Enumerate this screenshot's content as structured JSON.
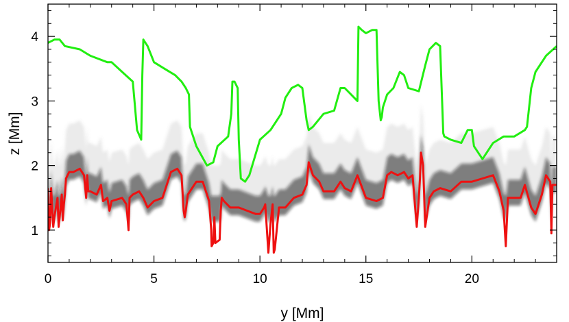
{
  "chart_data": {
    "type": "line",
    "title": "",
    "xlabel": "y [Mm]",
    "ylabel": "z [Mm]",
    "xlim": [
      0,
      24
    ],
    "ylim": [
      0.5,
      4.5
    ],
    "xticks": [
      0,
      5,
      10,
      15,
      20
    ],
    "yticks": [
      1,
      2,
      3,
      4
    ],
    "background": "grayscale density map (dark band near z 1.3-2.0 Mm)",
    "colors": {
      "upper_series": "#22ee11",
      "lower_series": "#ee1111",
      "axis": "#000000"
    },
    "series": [
      {
        "name": "upper boundary (green)",
        "color": "#22ee11",
        "x": [
          0.0,
          0.3,
          0.55,
          0.8,
          1.5,
          2.0,
          2.8,
          3.0,
          3.5,
          4.0,
          4.2,
          4.4,
          4.45,
          4.5,
          4.7,
          5.0,
          5.5,
          6.0,
          6.3,
          6.5,
          6.65,
          6.7,
          7.0,
          7.5,
          7.8,
          8.0,
          8.5,
          8.65,
          8.7,
          8.8,
          8.95,
          9.0,
          9.1,
          9.3,
          9.5,
          10.0,
          10.5,
          11.0,
          11.2,
          11.5,
          11.8,
          12.0,
          12.2,
          12.3,
          12.5,
          13.0,
          13.5,
          13.8,
          14.0,
          14.3,
          14.6,
          14.65,
          14.8,
          15.0,
          15.3,
          15.5,
          15.6,
          15.7,
          15.75,
          15.8,
          16.0,
          16.3,
          16.6,
          16.8,
          17.0,
          17.5,
          17.8,
          18.0,
          18.3,
          18.5,
          18.65,
          18.7,
          19.0,
          19.5,
          19.8,
          20.0,
          20.1,
          20.3,
          20.5,
          21.0,
          21.5,
          22.0,
          22.5,
          22.6,
          22.8,
          23.0,
          23.5,
          24.0
        ],
        "y": [
          3.9,
          3.95,
          3.95,
          3.85,
          3.8,
          3.7,
          3.6,
          3.6,
          3.45,
          3.3,
          2.55,
          2.4,
          3.4,
          3.95,
          3.85,
          3.6,
          3.5,
          3.4,
          3.3,
          3.2,
          3.1,
          2.6,
          2.3,
          2.0,
          2.05,
          2.3,
          2.45,
          2.8,
          3.3,
          3.3,
          3.2,
          2.4,
          1.8,
          1.75,
          1.85,
          2.4,
          2.55,
          2.8,
          3.05,
          3.2,
          3.25,
          3.2,
          2.7,
          2.55,
          2.6,
          2.8,
          2.85,
          3.2,
          3.2,
          3.1,
          3.0,
          4.15,
          4.1,
          4.05,
          4.1,
          4.1,
          3.0,
          2.7,
          2.75,
          2.9,
          3.1,
          3.2,
          3.45,
          3.4,
          3.2,
          3.15,
          3.55,
          3.8,
          3.9,
          3.85,
          2.5,
          2.45,
          2.4,
          2.35,
          2.55,
          2.55,
          2.3,
          2.2,
          2.1,
          2.35,
          2.45,
          2.45,
          2.55,
          2.6,
          3.2,
          3.45,
          3.7,
          3.85
        ]
      },
      {
        "name": "lower boundary (red)",
        "color": "#ee1111",
        "x": [
          0.0,
          0.05,
          0.1,
          0.15,
          0.25,
          0.3,
          0.45,
          0.5,
          0.55,
          0.65,
          0.7,
          0.75,
          0.8,
          0.85,
          1.0,
          1.2,
          1.5,
          1.7,
          1.8,
          1.85,
          1.9,
          2.0,
          2.3,
          2.5,
          2.6,
          2.8,
          2.9,
          3.0,
          3.5,
          3.7,
          3.8,
          3.85,
          4.0,
          4.3,
          4.5,
          4.7,
          5.0,
          5.4,
          5.8,
          6.1,
          6.3,
          6.4,
          6.45,
          6.5,
          6.6,
          7.0,
          7.3,
          7.5,
          7.6,
          7.7,
          7.72,
          7.8,
          7.85,
          7.9,
          8.1,
          8.15,
          8.2,
          8.3,
          8.6,
          9.0,
          9.4,
          9.8,
          10.0,
          10.2,
          10.25,
          10.4,
          10.5,
          10.6,
          10.65,
          10.7,
          10.9,
          11.2,
          11.6,
          12.0,
          12.2,
          12.3,
          12.5,
          12.8,
          13.0,
          13.5,
          13.8,
          14.0,
          14.3,
          14.6,
          15.0,
          15.5,
          15.8,
          16.0,
          16.2,
          16.5,
          16.8,
          17.0,
          17.2,
          17.4,
          17.5,
          17.55,
          17.6,
          17.7,
          17.8,
          18.0,
          18.2,
          18.5,
          19.0,
          19.5,
          20.0,
          20.5,
          21.0,
          21.3,
          21.5,
          21.6,
          21.7,
          22.0,
          22.3,
          22.5,
          22.8,
          23.0,
          23.3,
          23.5,
          23.7,
          23.75,
          23.8,
          23.9,
          24.0
        ],
        "y": [
          1.65,
          1.0,
          1.1,
          1.65,
          1.05,
          1.2,
          1.5,
          1.05,
          1.2,
          1.55,
          1.15,
          1.4,
          1.55,
          1.8,
          1.9,
          1.9,
          1.95,
          1.85,
          1.5,
          1.85,
          1.6,
          1.6,
          1.55,
          1.7,
          1.45,
          1.5,
          1.3,
          1.45,
          1.5,
          1.4,
          1.0,
          1.5,
          1.55,
          1.6,
          1.5,
          1.35,
          1.45,
          1.5,
          1.9,
          1.95,
          1.85,
          1.3,
          1.2,
          1.3,
          1.55,
          1.75,
          1.75,
          1.55,
          1.45,
          1.0,
          0.75,
          0.8,
          1.2,
          0.8,
          0.85,
          1.3,
          1.5,
          1.45,
          1.35,
          1.35,
          1.3,
          1.25,
          1.25,
          1.35,
          1.4,
          0.65,
          1.1,
          1.4,
          0.65,
          0.7,
          1.35,
          1.35,
          1.5,
          1.55,
          1.7,
          2.05,
          1.85,
          1.75,
          1.6,
          1.6,
          1.75,
          1.65,
          1.6,
          1.85,
          1.5,
          1.45,
          1.5,
          1.85,
          1.9,
          1.85,
          1.9,
          1.8,
          1.85,
          1.05,
          1.5,
          1.8,
          2.2,
          2.0,
          1.05,
          1.5,
          1.6,
          1.65,
          1.6,
          1.75,
          1.75,
          1.8,
          1.85,
          1.6,
          1.3,
          0.75,
          1.5,
          1.5,
          1.5,
          1.7,
          1.35,
          1.25,
          1.55,
          1.85,
          1.75,
          0.95,
          1.7,
          1.7,
          1.7
        ]
      }
    ]
  }
}
